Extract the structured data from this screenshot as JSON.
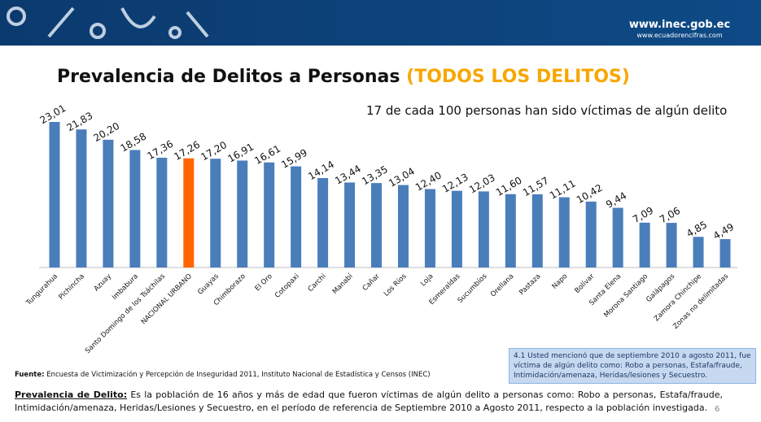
{
  "header": {
    "site": "www.inec.gob.ec",
    "site2": "www.ecuadorencifras.com"
  },
  "chart_data": {
    "type": "bar",
    "title": "Prevalencia de Delitos a Personas",
    "title_highlight": "(TODOS LOS DELITOS)",
    "subtitle": "17 de cada 100 personas han sido víctimas de algún delito",
    "categories": [
      "Tungurahua",
      "Pichincha",
      "Azuay",
      "Imbabura",
      "Santo Domingo de los Tsáchilas",
      "NACIONAL URBANO",
      "Guayas",
      "Chimborazo",
      "El Oro",
      "Cotopaxi",
      "Carchi",
      "Manabí",
      "Cañar",
      "Los Ríos",
      "Loja",
      "Esmeraldas",
      "Sucumbíos",
      "Orellana",
      "Pastaza",
      "Napo",
      "Bolívar",
      "Santa Elena",
      "Morona Santiago",
      "Galápagos",
      "Zamora Chinchipe",
      "Zonas no delimitadas"
    ],
    "values": [
      23.01,
      21.83,
      20.2,
      18.58,
      17.36,
      17.26,
      17.2,
      16.91,
      16.61,
      15.99,
      14.14,
      13.44,
      13.35,
      13.04,
      12.4,
      12.13,
      12.03,
      11.6,
      11.57,
      11.11,
      10.42,
      9.44,
      7.09,
      7.06,
      4.85,
      4.49
    ],
    "value_labels": [
      "23,01",
      "21,83",
      "20,20",
      "18,58",
      "17,36",
      "17,26",
      "17,20",
      "16,91",
      "16,61",
      "15,99",
      "14,14",
      "13,44",
      "13,35",
      "13,04",
      "12,40",
      "12,13",
      "12,03",
      "11,60",
      "11,57",
      "11,11",
      "10,42",
      "9,44",
      "7,09",
      "7,06",
      "4,85",
      "4,49"
    ],
    "colors": [
      "#4a7ebb",
      "#4a7ebb",
      "#4a7ebb",
      "#4a7ebb",
      "#4a7ebb",
      "#ff6600",
      "#4a7ebb",
      "#4a7ebb",
      "#4a7ebb",
      "#4a7ebb",
      "#4a7ebb",
      "#4a7ebb",
      "#4a7ebb",
      "#4a7ebb",
      "#4a7ebb",
      "#4a7ebb",
      "#4a7ebb",
      "#4a7ebb",
      "#4a7ebb",
      "#4a7ebb",
      "#4a7ebb",
      "#4a7ebb",
      "#4a7ebb",
      "#4a7ebb",
      "#4a7ebb",
      "#4a7ebb"
    ]
  },
  "note": "4.1 Usted mencionó que de septiembre 2010 a agosto 2011, fue víctima de algún delito como: Robo a personas, Estafa/fraude, Intimidación/amenaza, Heridas/lesiones y  Secuestro.",
  "source": {
    "label": "Fuente:",
    "text": "Encuesta de Victimización y Percepción de Inseguridad 2011, Instituto Nacional de Estadística y Censos (INEC)"
  },
  "definition": {
    "label": "Prevalencia de Delito:",
    "text": "Es la población de 16 años y más de edad que fueron víctimas de algún delito a personas como:  Robo a personas, Estafa/fraude, Intimidación/amenaza, Heridas/Lesiones y Secuestro, en el período de referencia de Septiembre 2010 a Agosto 2011, respecto a la población investigada."
  },
  "page_number": "6"
}
